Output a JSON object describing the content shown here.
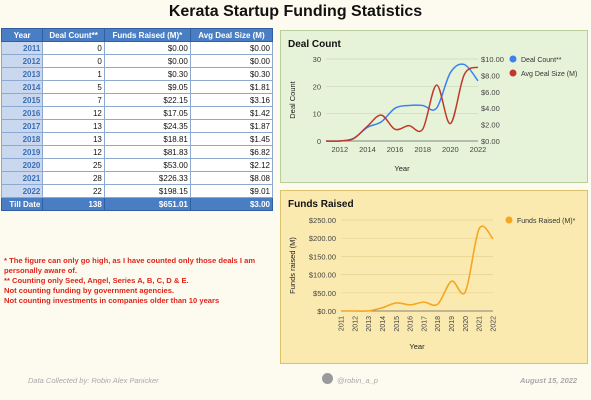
{
  "title": "Kerata Startup Funding Statistics",
  "table": {
    "headers": [
      "Year",
      "Deal Count**",
      "Funds Raised (M)*",
      "Avg Deal Size (M)"
    ],
    "rows": [
      [
        "2011",
        "0",
        "$0.00",
        "$0.00"
      ],
      [
        "2012",
        "0",
        "$0.00",
        "$0.00"
      ],
      [
        "2013",
        "1",
        "$0.30",
        "$0.30"
      ],
      [
        "2014",
        "5",
        "$9.05",
        "$1.81"
      ],
      [
        "2015",
        "7",
        "$22.15",
        "$3.16"
      ],
      [
        "2016",
        "12",
        "$17.05",
        "$1.42"
      ],
      [
        "2017",
        "13",
        "$24.35",
        "$1.87"
      ],
      [
        "2018",
        "13",
        "$18.81",
        "$1.45"
      ],
      [
        "2019",
        "12",
        "$81.83",
        "$6.82"
      ],
      [
        "2020",
        "25",
        "$53.00",
        "$2.12"
      ],
      [
        "2021",
        "28",
        "$226.33",
        "$8.08"
      ],
      [
        "2022",
        "22",
        "$198.15",
        "$9.01"
      ]
    ],
    "total": [
      "Till Date",
      "138",
      "$651.01",
      "$3.00"
    ]
  },
  "notes": [
    "* The figure can only go high, as I have counted only those deals I am personally aware of.",
    "** Counting only Seed, Angel, Series A, B, C, D & E.",
    "Not counting funding by government agencies.",
    "Not counting investments in companies older than 10 years"
  ],
  "footer": {
    "left": "Data Collected by: Robin Alex Panicker",
    "handle": "@robin_a_p",
    "date": "August 15, 2022"
  },
  "chart_data": [
    {
      "type": "line",
      "title": "Deal Count",
      "xlabel": "Year",
      "ylabel": "Deal Count",
      "x": [
        2011,
        2012,
        2013,
        2014,
        2015,
        2016,
        2017,
        2018,
        2019,
        2020,
        2021,
        2022
      ],
      "xticks": [
        "2012",
        "2014",
        "2016",
        "2018",
        "2020",
        "2022"
      ],
      "ylim": [
        0,
        30
      ],
      "yticks": [
        "0",
        "10",
        "20",
        "30"
      ],
      "y2lim": [
        0,
        10
      ],
      "y2ticks": [
        "$0.00",
        "$2.00",
        "$4.00",
        "$6.00",
        "$8.00",
        "$10.00"
      ],
      "legend_position": "right",
      "series": [
        {
          "name": "Deal Count**",
          "axis": "left",
          "color": "#3b82f0",
          "values": [
            0,
            0,
            1,
            5,
            7,
            12,
            13,
            13,
            12,
            25,
            28,
            22
          ]
        },
        {
          "name": "Avg Deal Size (M)",
          "axis": "right",
          "color": "#c0392b",
          "values": [
            0,
            0,
            0.3,
            1.81,
            3.16,
            1.42,
            1.87,
            1.45,
            6.82,
            2.12,
            8.08,
            9.01
          ]
        }
      ]
    },
    {
      "type": "line",
      "title": "Funds Raised",
      "xlabel": "Year",
      "ylabel": "Funds raised (M)",
      "x": [
        2011,
        2012,
        2013,
        2014,
        2015,
        2016,
        2017,
        2018,
        2019,
        2020,
        2021,
        2022
      ],
      "xticks": [
        "2011",
        "2012",
        "2013",
        "2014",
        "2015",
        "2016",
        "2017",
        "2018",
        "2019",
        "2020",
        "2021",
        "2022"
      ],
      "ylim": [
        0,
        250
      ],
      "yticks": [
        "$0.00",
        "$50.00",
        "$100.00",
        "$150.00",
        "$200.00",
        "$250.00"
      ],
      "legend_position": "right",
      "series": [
        {
          "name": "Funds Raised (M)*",
          "color": "#f5a623",
          "values": [
            0,
            0,
            0.3,
            9.05,
            22.15,
            17.05,
            24.35,
            18.81,
            81.83,
            53.0,
            226.33,
            198.15
          ]
        }
      ]
    }
  ]
}
